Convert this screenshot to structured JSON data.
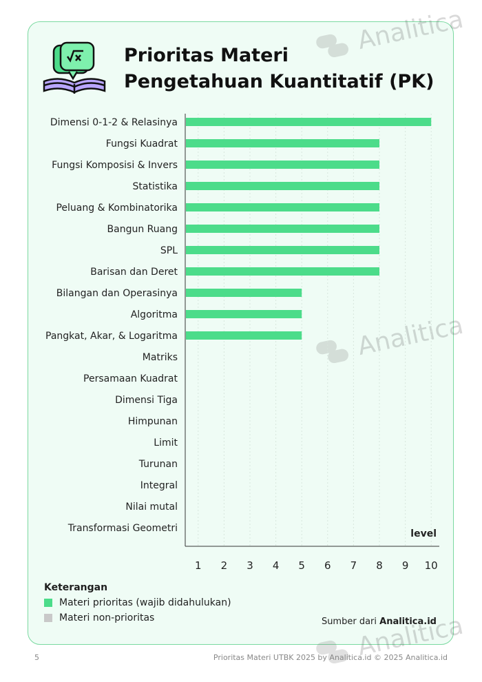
{
  "header": {
    "title_line1": "Prioritas Materi",
    "title_line2": "Pengetahuan Kuantitatif (PK)"
  },
  "watermark": {
    "text": "Analitica",
    "icon": "analitica-logo-icon"
  },
  "colors": {
    "priority": "#4cdc8a",
    "non_priority": "#c9c9c9",
    "border": "#7ad9a0",
    "background": "#effcf5"
  },
  "chart_data": {
    "type": "bar",
    "orientation": "horizontal",
    "title": "Prioritas Materi Pengetahuan Kuantitatif (PK)",
    "xlabel": "level",
    "ylabel": "",
    "xlim": [
      0,
      10
    ],
    "xticks": [
      1,
      2,
      3,
      4,
      5,
      6,
      7,
      8,
      9,
      10
    ],
    "grid": true,
    "categories": [
      "Dimensi 0-1-2 & Relasinya",
      "Fungsi Kuadrat",
      "Fungsi Komposisi & Invers",
      "Statistika",
      "Peluang & Kombinatorika",
      "Bangun Ruang",
      "SPL",
      "Barisan dan Deret",
      "Bilangan dan Operasinya",
      "Algoritma",
      "Pangkat, Akar, & Logaritma",
      "Matriks",
      "Persamaan Kuadrat",
      "Dimensi Tiga",
      "Himpunan",
      "Limit",
      "Turunan",
      "Integral",
      "Nilai mutal",
      "Transformasi Geometri"
    ],
    "values": [
      10,
      8,
      8,
      8,
      8,
      8,
      8,
      8,
      5,
      5,
      5,
      0.5,
      0.5,
      0.5,
      0.5,
      0.5,
      0.5,
      0.5,
      0.5,
      0.5
    ],
    "priority": [
      true,
      true,
      true,
      true,
      true,
      true,
      true,
      true,
      true,
      true,
      true,
      false,
      false,
      false,
      false,
      false,
      false,
      false,
      false,
      false
    ]
  },
  "legend": {
    "title": "Keterangan",
    "items": [
      {
        "label": "Materi prioritas (wajib didahulukan)",
        "color": "#4cdc8a"
      },
      {
        "label": "Materi non-prioritas",
        "color": "#c9c9c9"
      }
    ]
  },
  "source": {
    "prefix": "Sumber dari",
    "brand": "Analitica.id"
  },
  "footer": {
    "page_number": "5",
    "text": "Prioritas Materi UTBK 2025 by Analitica.id © 2025 Analitica.id"
  }
}
